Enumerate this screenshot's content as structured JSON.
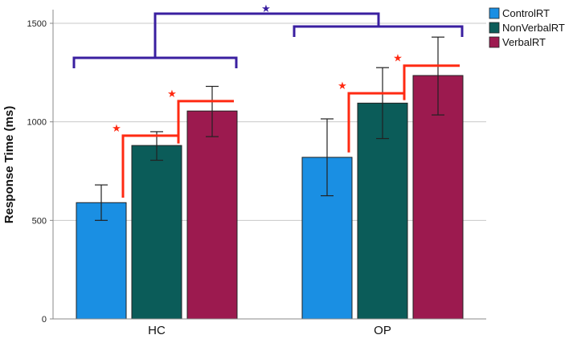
{
  "chart_data": {
    "type": "bar",
    "categories": [
      "HC",
      "OP"
    ],
    "ylabel": "Response Time (ms)",
    "xlabel": "",
    "ylim": [
      0,
      1500
    ],
    "yticks": [
      0,
      500,
      1000,
      1500
    ],
    "grid": true,
    "legend_position": "top-right",
    "series": [
      {
        "name": "ControlRT",
        "color": "#1a8fe3",
        "values": [
          590,
          820
        ],
        "error_low": [
          500,
          625
        ],
        "error_high": [
          680,
          1015
        ]
      },
      {
        "name": "NonVerbalRT",
        "color": "#0b5c59",
        "values": [
          880,
          1095
        ],
        "error_low": [
          805,
          915
        ],
        "error_high": [
          950,
          1275
        ]
      },
      {
        "name": "VerbalRT",
        "color": "#9c1a4f",
        "values": [
          1055,
          1235
        ],
        "error_low": [
          925,
          1035
        ],
        "error_high": [
          1180,
          1430
        ]
      }
    ],
    "annotations": {
      "significance_symbol": "★",
      "pairwise_color": "#ff2a12",
      "group_color": "#3a1fa0"
    }
  }
}
